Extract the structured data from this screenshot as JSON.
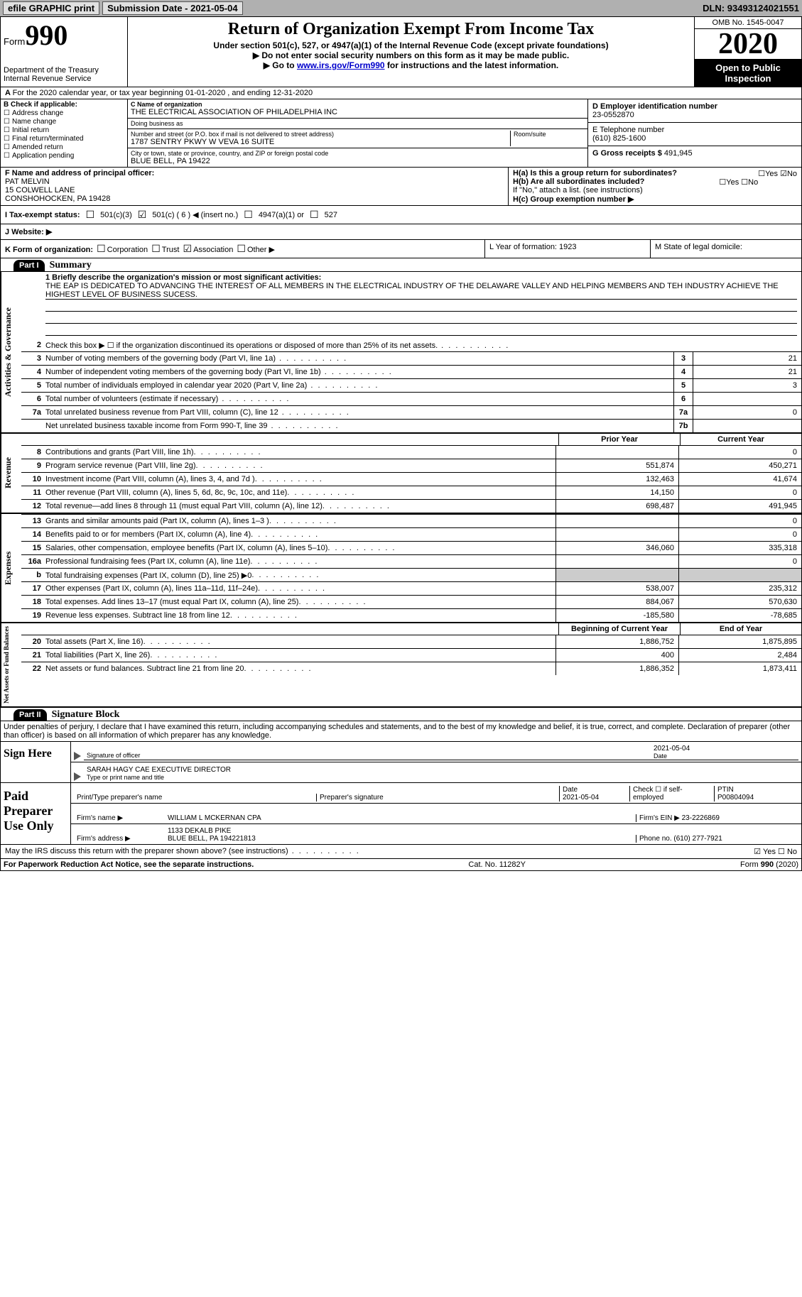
{
  "topbar": {
    "efile": "efile GRAPHIC print",
    "subdate_lbl": "Submission Date - ",
    "subdate": "2021-05-04",
    "dln_lbl": "DLN: ",
    "dln": "93493124021551"
  },
  "header": {
    "form_word": "Form",
    "form_num": "990",
    "dept": "Department of the Treasury\nInternal Revenue Service",
    "title": "Return of Organization Exempt From Income Tax",
    "sub1": "Under section 501(c), 527, or 4947(a)(1) of the Internal Revenue Code (except private foundations)",
    "sub2": "▶ Do not enter social security numbers on this form as it may be made public.",
    "sub3a": "▶ Go to ",
    "sub3_link": "www.irs.gov/Form990",
    "sub3b": " for instructions and the latest information.",
    "omb": "OMB No. 1545-0047",
    "year": "2020",
    "inspect": "Open to Public Inspection"
  },
  "line_a": "For the 2020 calendar year, or tax year beginning 01-01-2020   , and ending 12-31-2020",
  "box_b": {
    "header": "B Check if applicable:",
    "items": [
      "Address change",
      "Name change",
      "Initial return",
      "Final return/terminated",
      "Amended return",
      "Application pending"
    ]
  },
  "box_c": {
    "name_lbl": "C Name of organization",
    "name": "THE ELECTRICAL ASSOCIATION OF PHILADELPHIA INC",
    "dba_lbl": "Doing business as",
    "addr_lbl": "Number and street (or P.O. box if mail is not delivered to street address)",
    "addr": "1787 SENTRY PKWY W VEVA 16 SUITE",
    "room_lbl": "Room/suite",
    "city_lbl": "City or town, state or province, country, and ZIP or foreign postal code",
    "city": "BLUE BELL, PA  19422"
  },
  "box_d": {
    "lbl": "D Employer identification number",
    "val": "23-0552870"
  },
  "box_e": {
    "lbl": "E Telephone number",
    "val": "(610) 825-1600"
  },
  "box_g": {
    "lbl": "G Gross receipts $ ",
    "val": "491,945"
  },
  "box_f": {
    "lbl": "F Name and address of principal officer:",
    "name": "PAT MELVIN",
    "addr1": "15 COLWELL LANE",
    "addr2": "CONSHOHOCKEN, PA  19428"
  },
  "box_h": {
    "ha": "H(a)  Is this a group return for subordinates?",
    "hb": "H(b)  Are all subordinates included?",
    "hb2": "If \"No,\" attach a list. (see instructions)",
    "hc": "H(c)  Group exemption number ▶",
    "yes": "Yes",
    "no": "No"
  },
  "status": {
    "lbl": "I   Tax-exempt status:",
    "o1": "501(c)(3)",
    "o2": "501(c) ( 6 ) ◀ (insert no.)",
    "o3": "4947(a)(1) or",
    "o4": "527"
  },
  "website": {
    "lbl": "J   Website: ▶"
  },
  "kform": {
    "lbl": "K Form of organization:",
    "o1": "Corporation",
    "o2": "Trust",
    "o3": "Association",
    "o4": "Other ▶"
  },
  "lm": {
    "l": "L Year of formation: 1923",
    "m": "M State of legal domicile:"
  },
  "part1": {
    "hdr": "Part I",
    "title": "Summary"
  },
  "mission_lbl": "1   Briefly describe the organization's mission or most significant activities:",
  "mission": "THE EAP IS DEDICATED TO ADVANCING THE INTEREST OF ALL MEMBERS IN THE ELECTRICAL INDUSTRY OF THE DELAWARE VALLEY AND HELPING MEMBERS AND TEH INDUSTRY ACHIEVE THE HIGHEST LEVEL OF BUSINESS SUCESS.",
  "gov_lines": [
    {
      "n": "2",
      "d": "Check this box ▶ ☐  if the organization discontinued its operations or disposed of more than 25% of its net assets."
    },
    {
      "n": "3",
      "d": "Number of voting members of the governing body (Part VI, line 1a)",
      "box": "3",
      "v": "21"
    },
    {
      "n": "4",
      "d": "Number of independent voting members of the governing body (Part VI, line 1b)",
      "box": "4",
      "v": "21"
    },
    {
      "n": "5",
      "d": "Total number of individuals employed in calendar year 2020 (Part V, line 2a)",
      "box": "5",
      "v": "3"
    },
    {
      "n": "6",
      "d": "Total number of volunteers (estimate if necessary)",
      "box": "6",
      "v": ""
    },
    {
      "n": "7a",
      "d": "Total unrelated business revenue from Part VIII, column (C), line 12",
      "box": "7a",
      "v": "0"
    },
    {
      "n": "",
      "d": "Net unrelated business taxable income from Form 990-T, line 39",
      "box": "7b",
      "v": ""
    }
  ],
  "colhdr": {
    "prior": "Prior Year",
    "current": "Current Year"
  },
  "rev_lines": [
    {
      "n": "8",
      "d": "Contributions and grants (Part VIII, line 1h)",
      "p": "",
      "c": "0"
    },
    {
      "n": "9",
      "d": "Program service revenue (Part VIII, line 2g)",
      "p": "551,874",
      "c": "450,271"
    },
    {
      "n": "10",
      "d": "Investment income (Part VIII, column (A), lines 3, 4, and 7d )",
      "p": "132,463",
      "c": "41,674"
    },
    {
      "n": "11",
      "d": "Other revenue (Part VIII, column (A), lines 5, 6d, 8c, 9c, 10c, and 11e)",
      "p": "14,150",
      "c": "0"
    },
    {
      "n": "12",
      "d": "Total revenue—add lines 8 through 11 (must equal Part VIII, column (A), line 12)",
      "p": "698,487",
      "c": "491,945"
    }
  ],
  "exp_lines": [
    {
      "n": "13",
      "d": "Grants and similar amounts paid (Part IX, column (A), lines 1–3 )",
      "p": "",
      "c": "0"
    },
    {
      "n": "14",
      "d": "Benefits paid to or for members (Part IX, column (A), line 4)",
      "p": "",
      "c": "0"
    },
    {
      "n": "15",
      "d": "Salaries, other compensation, employee benefits (Part IX, column (A), lines 5–10)",
      "p": "346,060",
      "c": "335,318"
    },
    {
      "n": "16a",
      "d": "Professional fundraising fees (Part IX, column (A), line 11e)",
      "p": "",
      "c": "0"
    },
    {
      "n": "b",
      "d": "Total fundraising expenses (Part IX, column (D), line 25) ▶0",
      "p": "shade",
      "c": "shade"
    },
    {
      "n": "17",
      "d": "Other expenses (Part IX, column (A), lines 11a–11d, 11f–24e)",
      "p": "538,007",
      "c": "235,312"
    },
    {
      "n": "18",
      "d": "Total expenses. Add lines 13–17 (must equal Part IX, column (A), line 25)",
      "p": "884,067",
      "c": "570,630"
    },
    {
      "n": "19",
      "d": "Revenue less expenses. Subtract line 18 from line 12",
      "p": "-185,580",
      "c": "-78,685"
    }
  ],
  "colhdr2": {
    "beg": "Beginning of Current Year",
    "end": "End of Year"
  },
  "na_lines": [
    {
      "n": "20",
      "d": "Total assets (Part X, line 16)",
      "p": "1,886,752",
      "c": "1,875,895"
    },
    {
      "n": "21",
      "d": "Total liabilities (Part X, line 26)",
      "p": "400",
      "c": "2,484"
    },
    {
      "n": "22",
      "d": "Net assets or fund balances. Subtract line 21 from line 20",
      "p": "1,886,352",
      "c": "1,873,411"
    }
  ],
  "part2": {
    "hdr": "Part II",
    "title": "Signature Block"
  },
  "penalty": "Under penalties of perjury, I declare that I have examined this return, including accompanying schedules and statements, and to the best of my knowledge and belief, it is true, correct, and complete. Declaration of preparer (other than officer) is based on all information of which preparer has any knowledge.",
  "sign": {
    "here": "Sign Here",
    "sig_lbl": "Signature of officer",
    "date_lbl": "Date",
    "date": "2021-05-04",
    "name": "SARAH HAGY CAE  EXECUTIVE DIRECTOR",
    "name_lbl": "Type or print name and title"
  },
  "paid": {
    "hdr": "Paid Preparer Use Only",
    "r1": {
      "c1": "Print/Type preparer's name",
      "c2": "Preparer's signature",
      "c3": "Date",
      "c3v": "2021-05-04",
      "c4": "Check ☐ if self-employed",
      "c5": "PTIN",
      "c5v": "P00804094"
    },
    "r2": {
      "lbl": "Firm's name    ▶",
      "val": "WILLIAM L MCKERNAN CPA",
      "ein_lbl": "Firm's EIN ▶",
      "ein": "23-2226869"
    },
    "r3": {
      "lbl": "Firm's address ▶",
      "val": "1133 DEKALB PIKE",
      "val2": "BLUE BELL, PA  194221813",
      "ph_lbl": "Phone no.",
      "ph": "(610) 277-7921"
    }
  },
  "discuss": "May the IRS discuss this return with the preparer shown above? (see instructions)",
  "footer": {
    "l": "For Paperwork Reduction Act Notice, see the separate instructions.",
    "m": "Cat. No. 11282Y",
    "r": "Form 990 (2020)"
  },
  "vtabs": {
    "gov": "Activities & Governance",
    "rev": "Revenue",
    "exp": "Expenses",
    "na": "Net Assets or Fund Balances"
  }
}
